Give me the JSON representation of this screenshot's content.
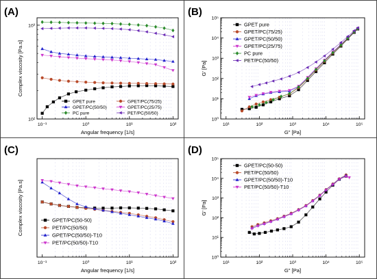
{
  "chart_data": [
    {
      "panel": "(A)",
      "type": "scatter",
      "xlabel": "Angular frequency [1/s]",
      "ylabel": "Complex viscosity [Pa.s]",
      "xscale": "log",
      "yscale": "log",
      "xlim": [
        0.1,
        100
      ],
      "ylim": [
        100,
        1200
      ],
      "x_ticks": [
        "10⁻¹",
        "10⁰",
        "10¹",
        "10²"
      ],
      "y_ticks": [
        "10²",
        "10³"
      ],
      "legend_position": "bottom-center",
      "legend_columns": 2,
      "series": [
        {
          "name": "GPET pure",
          "marker": "square",
          "color": "#000000",
          "x": [
            0.1,
            0.13,
            0.18,
            0.25,
            0.4,
            0.6,
            1,
            1.6,
            2.5,
            4,
            6.3,
            10,
            16,
            25,
            40,
            63,
            100
          ],
          "y": [
            115,
            135,
            152,
            168,
            185,
            195,
            203,
            210,
            215,
            220,
            222,
            225,
            226,
            227,
            226,
            224,
            222
          ]
        },
        {
          "name": "GPET/PC(75/25)",
          "marker": "circle",
          "color": "#b84a2a",
          "x": [
            0.1,
            0.16,
            0.25,
            0.4,
            0.63,
            1,
            1.6,
            2.5,
            4,
            6.3,
            10,
            16,
            25,
            40,
            63,
            100
          ],
          "y": [
            275,
            265,
            258,
            253,
            250,
            247,
            245,
            243,
            242,
            241,
            240,
            240,
            239,
            238,
            237,
            236
          ]
        },
        {
          "name": "GPET/PC(50/50)",
          "marker": "triangle-up",
          "color": "#2020cc",
          "x": [
            0.1,
            0.16,
            0.25,
            0.4,
            0.63,
            1,
            1.6,
            2.5,
            4,
            6.3,
            10,
            16,
            25,
            40,
            63,
            100
          ],
          "y": [
            560,
            520,
            500,
            490,
            480,
            470,
            465,
            460,
            455,
            450,
            445,
            440,
            435,
            430,
            420,
            410
          ]
        },
        {
          "name": "GPET/PC(25/75)",
          "marker": "triangle-down",
          "color": "#cc33cc",
          "x": [
            0.1,
            0.16,
            0.25,
            0.4,
            0.63,
            1,
            1.6,
            2.5,
            4,
            6.3,
            10,
            16,
            25,
            40,
            63,
            100
          ],
          "y": [
            480,
            470,
            460,
            452,
            445,
            440,
            435,
            430,
            425,
            418,
            410,
            400,
            390,
            380,
            355,
            330
          ]
        },
        {
          "name": "PC pure",
          "marker": "diamond",
          "color": "#2a8a2a",
          "x": [
            0.1,
            0.16,
            0.25,
            0.4,
            0.63,
            1,
            1.6,
            2.5,
            4,
            6.3,
            10,
            16,
            25,
            40,
            63,
            100
          ],
          "y": [
            1080,
            1075,
            1070,
            1065,
            1060,
            1055,
            1050,
            1045,
            1040,
            1030,
            1020,
            1005,
            990,
            960,
            930,
            880
          ]
        },
        {
          "name": "PET/PC(50/50)",
          "marker": "triangle-left",
          "color": "#6a2ab5",
          "x": [
            0.1,
            0.16,
            0.25,
            0.4,
            0.63,
            1,
            1.6,
            2.5,
            4,
            6.3,
            10,
            16,
            25,
            40,
            63,
            100
          ],
          "y": [
            920,
            925,
            930,
            935,
            935,
            935,
            930,
            925,
            920,
            910,
            895,
            875,
            850,
            820,
            790,
            755
          ]
        }
      ]
    },
    {
      "panel": "(B)",
      "type": "scatter",
      "xlabel": "G\" [Pa]",
      "ylabel": "G' [Pa]",
      "xscale": "log",
      "yscale": "log",
      "xlim": [
        10,
        100000
      ],
      "ylim": [
        1,
        100000
      ],
      "x_ticks": [
        "10¹",
        "10²",
        "10³",
        "10⁴",
        "10⁵"
      ],
      "y_ticks": [
        "10⁰",
        "10¹",
        "10²",
        "10³",
        "10⁴",
        "10⁵"
      ],
      "legend_position": "top-left",
      "legend_columns": 1,
      "series": [
        {
          "name": "GPET pure",
          "marker": "square",
          "color": "#000000",
          "x": [
            30,
            50,
            80,
            130,
            220,
            400,
            800,
            1500,
            2800,
            5000,
            9000,
            16000,
            28000,
            45000,
            70000,
            90000
          ],
          "y": [
            3,
            3.2,
            3.8,
            5,
            7,
            10,
            14,
            28,
            80,
            220,
            600,
            1600,
            4000,
            9000,
            19000,
            28000
          ]
        },
        {
          "name": "GPET/PC(75/25)",
          "marker": "circle",
          "color": "#b84a2a",
          "x": [
            30,
            50,
            80,
            130,
            220,
            400,
            800,
            1500,
            2800,
            5000,
            9000,
            16000,
            28000,
            45000,
            70000,
            90000
          ],
          "y": [
            2.5,
            4,
            5.5,
            7,
            9,
            12,
            17,
            35,
            95,
            260,
            700,
            1800,
            4300,
            9500,
            20000,
            29000
          ]
        },
        {
          "name": "GPET/PC(50/50)",
          "marker": "triangle-up",
          "color": "#2020cc",
          "x": [
            50,
            80,
            130,
            220,
            400,
            800,
            1500,
            2800,
            5000,
            9000,
            16000,
            28000,
            45000,
            70000,
            90000
          ],
          "y": [
            10,
            14,
            17,
            20,
            22,
            24,
            40,
            110,
            300,
            800,
            2000,
            4800,
            10000,
            21000,
            30000
          ]
        },
        {
          "name": "GPET/PC(25/75)",
          "marker": "triangle-down",
          "color": "#cc33cc",
          "x": [
            50,
            80,
            130,
            220,
            400,
            800,
            1500,
            2800,
            5000,
            9000,
            16000,
            28000,
            45000,
            70000,
            90000
          ],
          "y": [
            12,
            15,
            18,
            21,
            24,
            26,
            42,
            115,
            310,
            820,
            2050,
            4900,
            10200,
            21500,
            30500
          ]
        },
        {
          "name": "PC pure",
          "marker": "diamond",
          "color": "#2a8a2a",
          "x": [
            60,
            100,
            160,
            260,
            450,
            800,
            1500,
            2800,
            5000,
            9000,
            16000,
            28000,
            45000,
            70000,
            90000
          ],
          "y": [
            4,
            5,
            6.5,
            9,
            13,
            18,
            38,
            100,
            280,
            750,
            1900,
            4500,
            9800,
            20500,
            29500
          ]
        },
        {
          "name": "PET/PC(50/50)",
          "marker": "triangle-left",
          "color": "#6a2ab5",
          "x": [
            60,
            100,
            160,
            260,
            450,
            800,
            1500,
            2800,
            5000,
            9000,
            16000,
            28000,
            45000,
            70000,
            90000
          ],
          "y": [
            40,
            50,
            60,
            75,
            95,
            130,
            200,
            350,
            650,
            1300,
            2800,
            6000,
            12000,
            23000,
            32000
          ]
        }
      ]
    },
    {
      "panel": "(C)",
      "type": "scatter",
      "xlabel": "Angular frequency [1/s]",
      "ylabel": "Complex viscosity [Pa.s]",
      "xscale": "log",
      "yscale": "linear",
      "xlim": [
        0.1,
        100
      ],
      "ylim": [
        0,
        1000
      ],
      "x_ticks": [
        "10⁻¹",
        "10⁰",
        "10¹",
        "10²"
      ],
      "legend_position": "bottom-left",
      "legend_columns": 1,
      "series": [
        {
          "name": "GPET/PC(50-50)",
          "marker": "square",
          "color": "#000000",
          "x": [
            0.1,
            0.16,
            0.25,
            0.4,
            0.63,
            1,
            1.6,
            2.5,
            4,
            6.3,
            10,
            16,
            25,
            40,
            63,
            100
          ],
          "y": [
            560,
            540,
            525,
            515,
            505,
            500,
            498,
            497,
            498,
            500,
            500,
            498,
            495,
            490,
            480,
            470
          ]
        },
        {
          "name": "PET/PC(50/50)",
          "marker": "circle",
          "color": "#b84a2a",
          "x": [
            0.1,
            0.16,
            0.25,
            0.4,
            0.63,
            1,
            1.6,
            2.5,
            4,
            6.3,
            10,
            16,
            25,
            40,
            63,
            100
          ],
          "y": [
            560,
            540,
            525,
            515,
            505,
            495,
            485,
            475,
            465,
            455,
            445,
            430,
            415,
            400,
            380,
            360
          ]
        },
        {
          "name": "GPET/PC(50/50)-T10",
          "marker": "triangle-up",
          "color": "#2020cc",
          "x": [
            0.1,
            0.16,
            0.25,
            0.4,
            0.63,
            1,
            1.6,
            2.5,
            4,
            6.3,
            10,
            16,
            25,
            40,
            63,
            100
          ],
          "y": [
            760,
            700,
            650,
            590,
            540,
            510,
            490,
            475,
            460,
            445,
            430,
            415,
            400,
            385,
            365,
            340
          ]
        },
        {
          "name": "PET/PC(50/50)-T10",
          "marker": "triangle-down",
          "color": "#cc33cc",
          "x": [
            0.1,
            0.16,
            0.25,
            0.4,
            0.63,
            1,
            1.6,
            2.5,
            4,
            6.3,
            10,
            16,
            25,
            40,
            63,
            100
          ],
          "y": [
            780,
            770,
            755,
            740,
            725,
            715,
            705,
            695,
            685,
            675,
            665,
            655,
            640,
            625,
            610,
            595
          ]
        }
      ]
    },
    {
      "panel": "(D)",
      "type": "scatter",
      "xlabel": "G\" [Pa]",
      "ylabel": "G' [Pa]",
      "xscale": "log",
      "yscale": "log",
      "xlim": [
        10,
        100000
      ],
      "ylim": [
        1,
        100000
      ],
      "x_ticks": [
        "10¹",
        "10²",
        "10³",
        "10⁴",
        "10⁵"
      ],
      "y_ticks": [
        "10⁰",
        "10¹",
        "10²",
        "10³",
        "10⁴",
        "10⁵"
      ],
      "legend_position": "top-left",
      "legend_columns": 1,
      "series": [
        {
          "name": "GPET/PC(50-50)",
          "marker": "square",
          "color": "#000000",
          "x": [
            50,
            70,
            100,
            150,
            230,
            350,
            550,
            900,
            1500,
            2500,
            4000,
            6500,
            10000,
            16000,
            25000,
            40000
          ],
          "y": [
            18,
            15,
            16,
            18,
            21,
            24,
            28,
            35,
            60,
            140,
            350,
            900,
            2000,
            4500,
            9000,
            13000
          ]
        },
        {
          "name": "PET/PC(50/50)",
          "marker": "circle",
          "color": "#b84a2a",
          "x": [
            60,
            90,
            140,
            220,
            350,
            550,
            900,
            1500,
            2500,
            4000,
            6500,
            10000,
            16000,
            25000,
            40000
          ],
          "y": [
            35,
            45,
            55,
            70,
            90,
            120,
            170,
            260,
            420,
            750,
            1400,
            2700,
            5200,
            9500,
            15000
          ]
        },
        {
          "name": "GPET/PC(50/50)-T10",
          "marker": "triangle-up",
          "color": "#2020cc",
          "x": [
            60,
            90,
            140,
            220,
            350,
            550,
            900,
            1500,
            2500,
            4000,
            6500,
            10000,
            16000,
            25000,
            40000
          ],
          "y": [
            30,
            40,
            50,
            65,
            85,
            115,
            160,
            250,
            400,
            720,
            1350,
            2600,
            5000,
            9200,
            14000
          ]
        },
        {
          "name": "PET/PC(50/50)-T10",
          "marker": "triangle-down",
          "color": "#cc33cc",
          "x": [
            60,
            90,
            140,
            220,
            350,
            550,
            900,
            1500,
            2500,
            4000,
            6500,
            10000,
            16000,
            25000,
            40000,
            50000
          ],
          "y": [
            28,
            38,
            48,
            62,
            82,
            110,
            155,
            240,
            390,
            700,
            1300,
            2500,
            4800,
            9000,
            12500,
            11000
          ]
        }
      ]
    }
  ]
}
